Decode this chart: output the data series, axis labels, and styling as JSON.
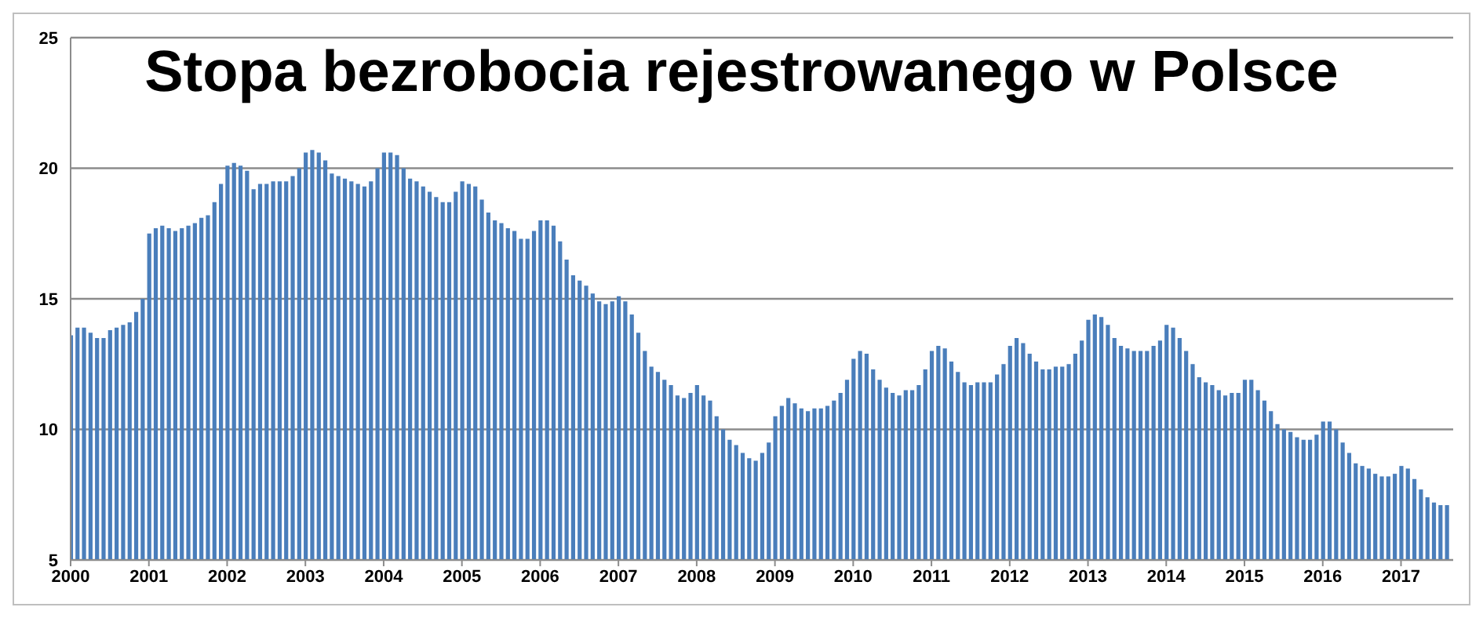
{
  "chart_data": {
    "type": "bar",
    "title": "Stopa bezrobocia rejestrowanego w Polsce",
    "x": [
      "2000-01",
      "2000-02",
      "2000-03",
      "2000-04",
      "2000-05",
      "2000-06",
      "2000-07",
      "2000-08",
      "2000-09",
      "2000-10",
      "2000-11",
      "2000-12",
      "2001-01",
      "2001-02",
      "2001-03",
      "2001-04",
      "2001-05",
      "2001-06",
      "2001-07",
      "2001-08",
      "2001-09",
      "2001-10",
      "2001-11",
      "2001-12",
      "2002-01",
      "2002-02",
      "2002-03",
      "2002-04",
      "2002-05",
      "2002-06",
      "2002-07",
      "2002-08",
      "2002-09",
      "2002-10",
      "2002-11",
      "2002-12",
      "2003-01",
      "2003-02",
      "2003-03",
      "2003-04",
      "2003-05",
      "2003-06",
      "2003-07",
      "2003-08",
      "2003-09",
      "2003-10",
      "2003-11",
      "2003-12",
      "2004-01",
      "2004-02",
      "2004-03",
      "2004-04",
      "2004-05",
      "2004-06",
      "2004-07",
      "2004-08",
      "2004-09",
      "2004-10",
      "2004-11",
      "2004-12",
      "2005-01",
      "2005-02",
      "2005-03",
      "2005-04",
      "2005-05",
      "2005-06",
      "2005-07",
      "2005-08",
      "2005-09",
      "2005-10",
      "2005-11",
      "2005-12",
      "2006-01",
      "2006-02",
      "2006-03",
      "2006-04",
      "2006-05",
      "2006-06",
      "2006-07",
      "2006-08",
      "2006-09",
      "2006-10",
      "2006-11",
      "2006-12",
      "2007-01",
      "2007-02",
      "2007-03",
      "2007-04",
      "2007-05",
      "2007-06",
      "2007-07",
      "2007-08",
      "2007-09",
      "2007-10",
      "2007-11",
      "2007-12",
      "2008-01",
      "2008-02",
      "2008-03",
      "2008-04",
      "2008-05",
      "2008-06",
      "2008-07",
      "2008-08",
      "2008-09",
      "2008-10",
      "2008-11",
      "2008-12",
      "2009-01",
      "2009-02",
      "2009-03",
      "2009-04",
      "2009-05",
      "2009-06",
      "2009-07",
      "2009-08",
      "2009-09",
      "2009-10",
      "2009-11",
      "2009-12",
      "2010-01",
      "2010-02",
      "2010-03",
      "2010-04",
      "2010-05",
      "2010-06",
      "2010-07",
      "2010-08",
      "2010-09",
      "2010-10",
      "2010-11",
      "2010-12",
      "2011-01",
      "2011-02",
      "2011-03",
      "2011-04",
      "2011-05",
      "2011-06",
      "2011-07",
      "2011-08",
      "2011-09",
      "2011-10",
      "2011-11",
      "2011-12",
      "2012-01",
      "2012-02",
      "2012-03",
      "2012-04",
      "2012-05",
      "2012-06",
      "2012-07",
      "2012-08",
      "2012-09",
      "2012-10",
      "2012-11",
      "2012-12",
      "2013-01",
      "2013-02",
      "2013-03",
      "2013-04",
      "2013-05",
      "2013-06",
      "2013-07",
      "2013-08",
      "2013-09",
      "2013-10",
      "2013-11",
      "2013-12",
      "2014-01",
      "2014-02",
      "2014-03",
      "2014-04",
      "2014-05",
      "2014-06",
      "2014-07",
      "2014-08",
      "2014-09",
      "2014-10",
      "2014-11",
      "2014-12",
      "2015-01",
      "2015-02",
      "2015-03",
      "2015-04",
      "2015-05",
      "2015-06",
      "2015-07",
      "2015-08",
      "2015-09",
      "2015-10",
      "2015-11",
      "2015-12",
      "2016-01",
      "2016-02",
      "2016-03",
      "2016-04",
      "2016-05",
      "2016-06",
      "2016-07",
      "2016-08",
      "2016-09",
      "2016-10",
      "2016-11",
      "2016-12",
      "2017-01",
      "2017-02",
      "2017-03",
      "2017-04",
      "2017-05",
      "2017-06",
      "2017-07",
      "2017-08"
    ],
    "values": [
      13.6,
      13.9,
      13.9,
      13.7,
      13.5,
      13.5,
      13.8,
      13.9,
      14.0,
      14.1,
      14.5,
      15.0,
      17.5,
      17.7,
      17.8,
      17.7,
      17.6,
      17.7,
      17.8,
      17.9,
      18.1,
      18.2,
      18.7,
      19.4,
      20.1,
      20.2,
      20.1,
      19.9,
      19.2,
      19.4,
      19.4,
      19.5,
      19.5,
      19.5,
      19.7,
      20.0,
      20.6,
      20.7,
      20.6,
      20.3,
      19.8,
      19.7,
      19.6,
      19.5,
      19.4,
      19.3,
      19.5,
      20.0,
      20.6,
      20.6,
      20.5,
      20.0,
      19.6,
      19.5,
      19.3,
      19.1,
      18.9,
      18.7,
      18.7,
      19.1,
      19.5,
      19.4,
      19.3,
      18.8,
      18.3,
      18.0,
      17.9,
      17.7,
      17.6,
      17.3,
      17.3,
      17.6,
      18.0,
      18.0,
      17.8,
      17.2,
      16.5,
      15.9,
      15.7,
      15.5,
      15.2,
      14.9,
      14.8,
      14.9,
      15.1,
      14.9,
      14.4,
      13.7,
      13.0,
      12.4,
      12.2,
      11.9,
      11.7,
      11.3,
      11.2,
      11.4,
      11.7,
      11.3,
      11.1,
      10.5,
      10.0,
      9.6,
      9.4,
      9.1,
      8.9,
      8.8,
      9.1,
      9.5,
      10.5,
      10.9,
      11.2,
      11.0,
      10.8,
      10.7,
      10.8,
      10.8,
      10.9,
      11.1,
      11.4,
      11.9,
      12.7,
      13.0,
      12.9,
      12.3,
      11.9,
      11.6,
      11.4,
      11.3,
      11.5,
      11.5,
      11.7,
      12.3,
      13.0,
      13.2,
      13.1,
      12.6,
      12.2,
      11.8,
      11.7,
      11.8,
      11.8,
      11.8,
      12.1,
      12.5,
      13.2,
      13.5,
      13.3,
      12.9,
      12.6,
      12.3,
      12.3,
      12.4,
      12.4,
      12.5,
      12.9,
      13.4,
      14.2,
      14.4,
      14.3,
      14.0,
      13.5,
      13.2,
      13.1,
      13.0,
      13.0,
      13.0,
      13.2,
      13.4,
      14.0,
      13.9,
      13.5,
      13.0,
      12.5,
      12.0,
      11.8,
      11.7,
      11.5,
      11.3,
      11.4,
      11.4,
      11.9,
      11.9,
      11.5,
      11.1,
      10.7,
      10.2,
      10.0,
      9.9,
      9.7,
      9.6,
      9.6,
      9.8,
      10.3,
      10.3,
      10.0,
      9.5,
      9.1,
      8.7,
      8.6,
      8.5,
      8.3,
      8.2,
      8.2,
      8.3,
      8.6,
      8.5,
      8.1,
      7.7,
      7.4,
      7.2,
      7.1,
      7.1
    ],
    "color": "#4a7ebb",
    "xlim": [
      "2000-01",
      "2017-09"
    ],
    "xticks": [
      "2000",
      "2001",
      "2002",
      "2003",
      "2004",
      "2005",
      "2006",
      "2007",
      "2008",
      "2009",
      "2010",
      "2011",
      "2012",
      "2013",
      "2014",
      "2015",
      "2016",
      "2017"
    ],
    "ylim": [
      5,
      25
    ],
    "yticks": [
      5,
      10,
      15,
      20,
      25
    ],
    "grid": "y",
    "legend": false
  }
}
